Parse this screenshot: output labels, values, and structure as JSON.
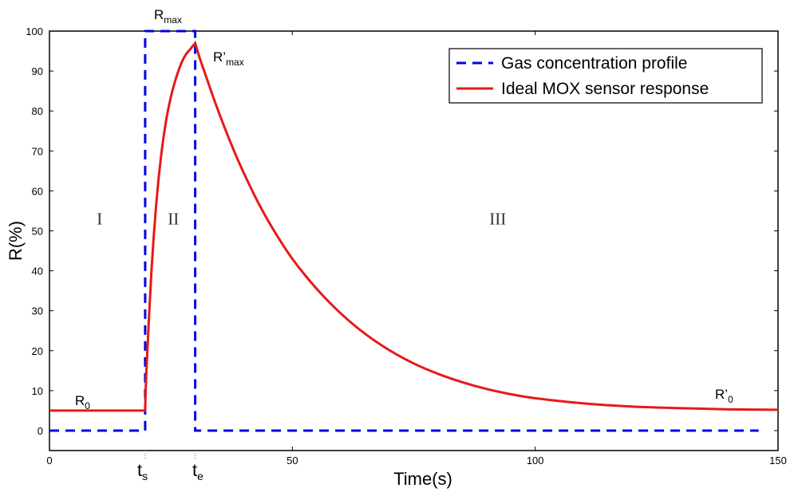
{
  "chart_data": {
    "type": "line",
    "title": "",
    "xlabel": "Time(s)",
    "ylabel": "R(%)",
    "xlim": [
      0,
      150
    ],
    "ylim": [
      -5,
      100
    ],
    "xticks": [
      0,
      50,
      100,
      150
    ],
    "yticks": [
      0,
      10,
      20,
      30,
      40,
      50,
      60,
      70,
      80,
      90,
      100
    ],
    "grid": false,
    "legend_position": "top-right",
    "series": [
      {
        "name": "Gas concentration profile",
        "style": "dashed",
        "color": "#0000e6",
        "x": [
          0,
          19.7,
          19.7,
          30,
          30,
          146
        ],
        "y": [
          0,
          0,
          100,
          100,
          0,
          0
        ]
      },
      {
        "name": "Ideal MOX sensor response",
        "style": "solid",
        "color": "#e61919",
        "x": [
          0,
          19.7,
          20,
          21,
          22,
          23,
          24,
          25,
          26,
          27,
          28,
          29,
          30,
          31,
          32,
          34,
          36,
          38,
          40,
          43,
          46,
          50,
          55,
          60,
          65,
          70,
          75,
          80,
          85,
          90,
          95,
          100,
          110,
          120,
          130,
          140,
          150
        ],
        "y": [
          5,
          5,
          16,
          40,
          57,
          69,
          77.5,
          83.5,
          88,
          91.5,
          94,
          95.5,
          97,
          93,
          89.5,
          82.5,
          76,
          70,
          64.5,
          57,
          50.5,
          43,
          35.5,
          29.3,
          24.2,
          20.1,
          16.8,
          14.2,
          12.1,
          10.4,
          9.1,
          8.1,
          6.8,
          6,
          5.6,
          5.3,
          5.2
        ]
      }
    ],
    "annotations": {
      "r_max": {
        "base": "R",
        "sub": "max"
      },
      "r_max_prime": {
        "base": "R’",
        "sub": "max"
      },
      "r0": {
        "base": "R",
        "sub": "0"
      },
      "r0_prime": {
        "base": "R’",
        "sub": "0"
      },
      "ts": {
        "base": "t",
        "sub": "s",
        "x": 19.7
      },
      "te": {
        "base": "t",
        "sub": "e",
        "x": 30
      },
      "regions": [
        {
          "label": "I",
          "x": 10.3,
          "y": 53
        },
        {
          "label": "II",
          "x": 25.5,
          "y": 53
        },
        {
          "label": "III",
          "x": 92.3,
          "y": 53
        }
      ]
    }
  }
}
